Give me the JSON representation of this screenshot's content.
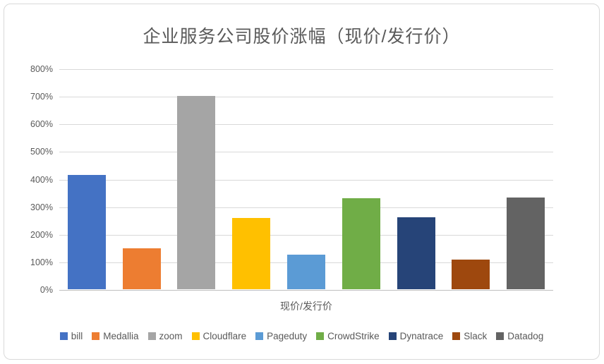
{
  "chart_data": {
    "type": "bar",
    "title": "企业服务公司股价涨幅（现价/发行价）",
    "xlabel": "现价/发行价",
    "ylabel": "",
    "ylim": [
      0,
      800
    ],
    "y_tick_step": 100,
    "y_ticks": [
      "0%",
      "100%",
      "200%",
      "300%",
      "400%",
      "500%",
      "600%",
      "700%",
      "800%"
    ],
    "grid": true,
    "legend_position": "bottom",
    "series": [
      {
        "name": "bill",
        "value": 415,
        "color": "#4472C4"
      },
      {
        "name": "Medallia",
        "value": 148,
        "color": "#ED7D31"
      },
      {
        "name": "zoom",
        "value": 700,
        "color": "#A5A5A5"
      },
      {
        "name": "Cloudflare",
        "value": 258,
        "color": "#FFC000"
      },
      {
        "name": "Pageduty",
        "value": 125,
        "color": "#5B9BD5"
      },
      {
        "name": "CrowdStrike",
        "value": 330,
        "color": "#70AD47"
      },
      {
        "name": "Dynatrace",
        "value": 260,
        "color": "#264478"
      },
      {
        "name": "Slack",
        "value": 108,
        "color": "#9E480E"
      },
      {
        "name": "Datadog",
        "value": 333,
        "color": "#636363"
      }
    ],
    "colors": {
      "title_text": "#595959",
      "axis_text": "#595959",
      "gridline": "#d9d9d9",
      "axis_line": "#bfbfbf",
      "frame_border": "#d9d9d9",
      "background": "#ffffff"
    }
  }
}
